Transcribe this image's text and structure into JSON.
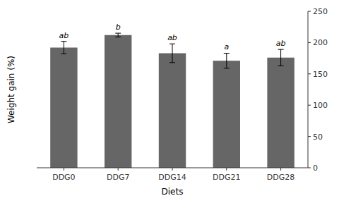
{
  "chart_data": {
    "type": "bar",
    "categories": [
      "DDG0",
      "DDG7",
      "DDG14",
      "DDG21",
      "DDG28"
    ],
    "values": [
      192,
      212,
      183,
      171,
      176
    ],
    "errors": [
      10,
      3,
      15,
      12,
      13
    ],
    "annotations": [
      "ab",
      "b",
      "ab",
      "a",
      "ab"
    ],
    "color": "#666666",
    "x_label": "Diets",
    "y_label": "Weight gain (%)",
    "ylim": [
      0,
      250
    ],
    "yticks": [
      0,
      50,
      100,
      150,
      200,
      250
    ],
    "grid": false
  }
}
